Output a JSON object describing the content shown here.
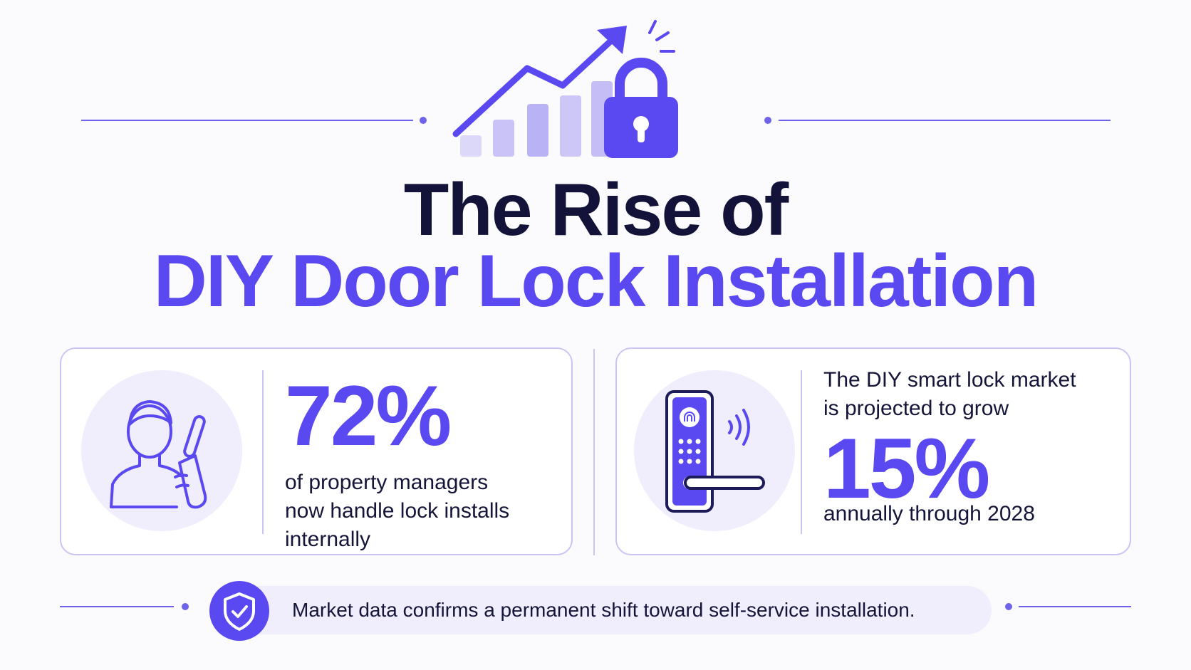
{
  "title": {
    "line1": "The Rise of",
    "line2": "DIY Door Lock Installation"
  },
  "colors": {
    "accent": "#5a48f0",
    "dark_text": "#13133a",
    "soft_fill": "#f0eefc",
    "card_border": "#cac5f4"
  },
  "hero": {
    "icons": [
      "trend-arrow-icon",
      "bar-chart-icon",
      "padlock-icon",
      "sparkle-icon"
    ]
  },
  "stat_left": {
    "value": "72%",
    "description_lines": [
      "of property managers",
      "now handle lock installs",
      "internally"
    ],
    "icon": "person-with-screwdriver-icon"
  },
  "stat_right": {
    "intro_lines": [
      "The DIY smart lock market",
      "is projected to grow"
    ],
    "value": "15%",
    "outro": "annually through 2028",
    "icon": "smart-lock-icon"
  },
  "footer": {
    "text": "Market data confirms a permanent shift toward self-service installation.",
    "icon": "shield-check-icon"
  }
}
